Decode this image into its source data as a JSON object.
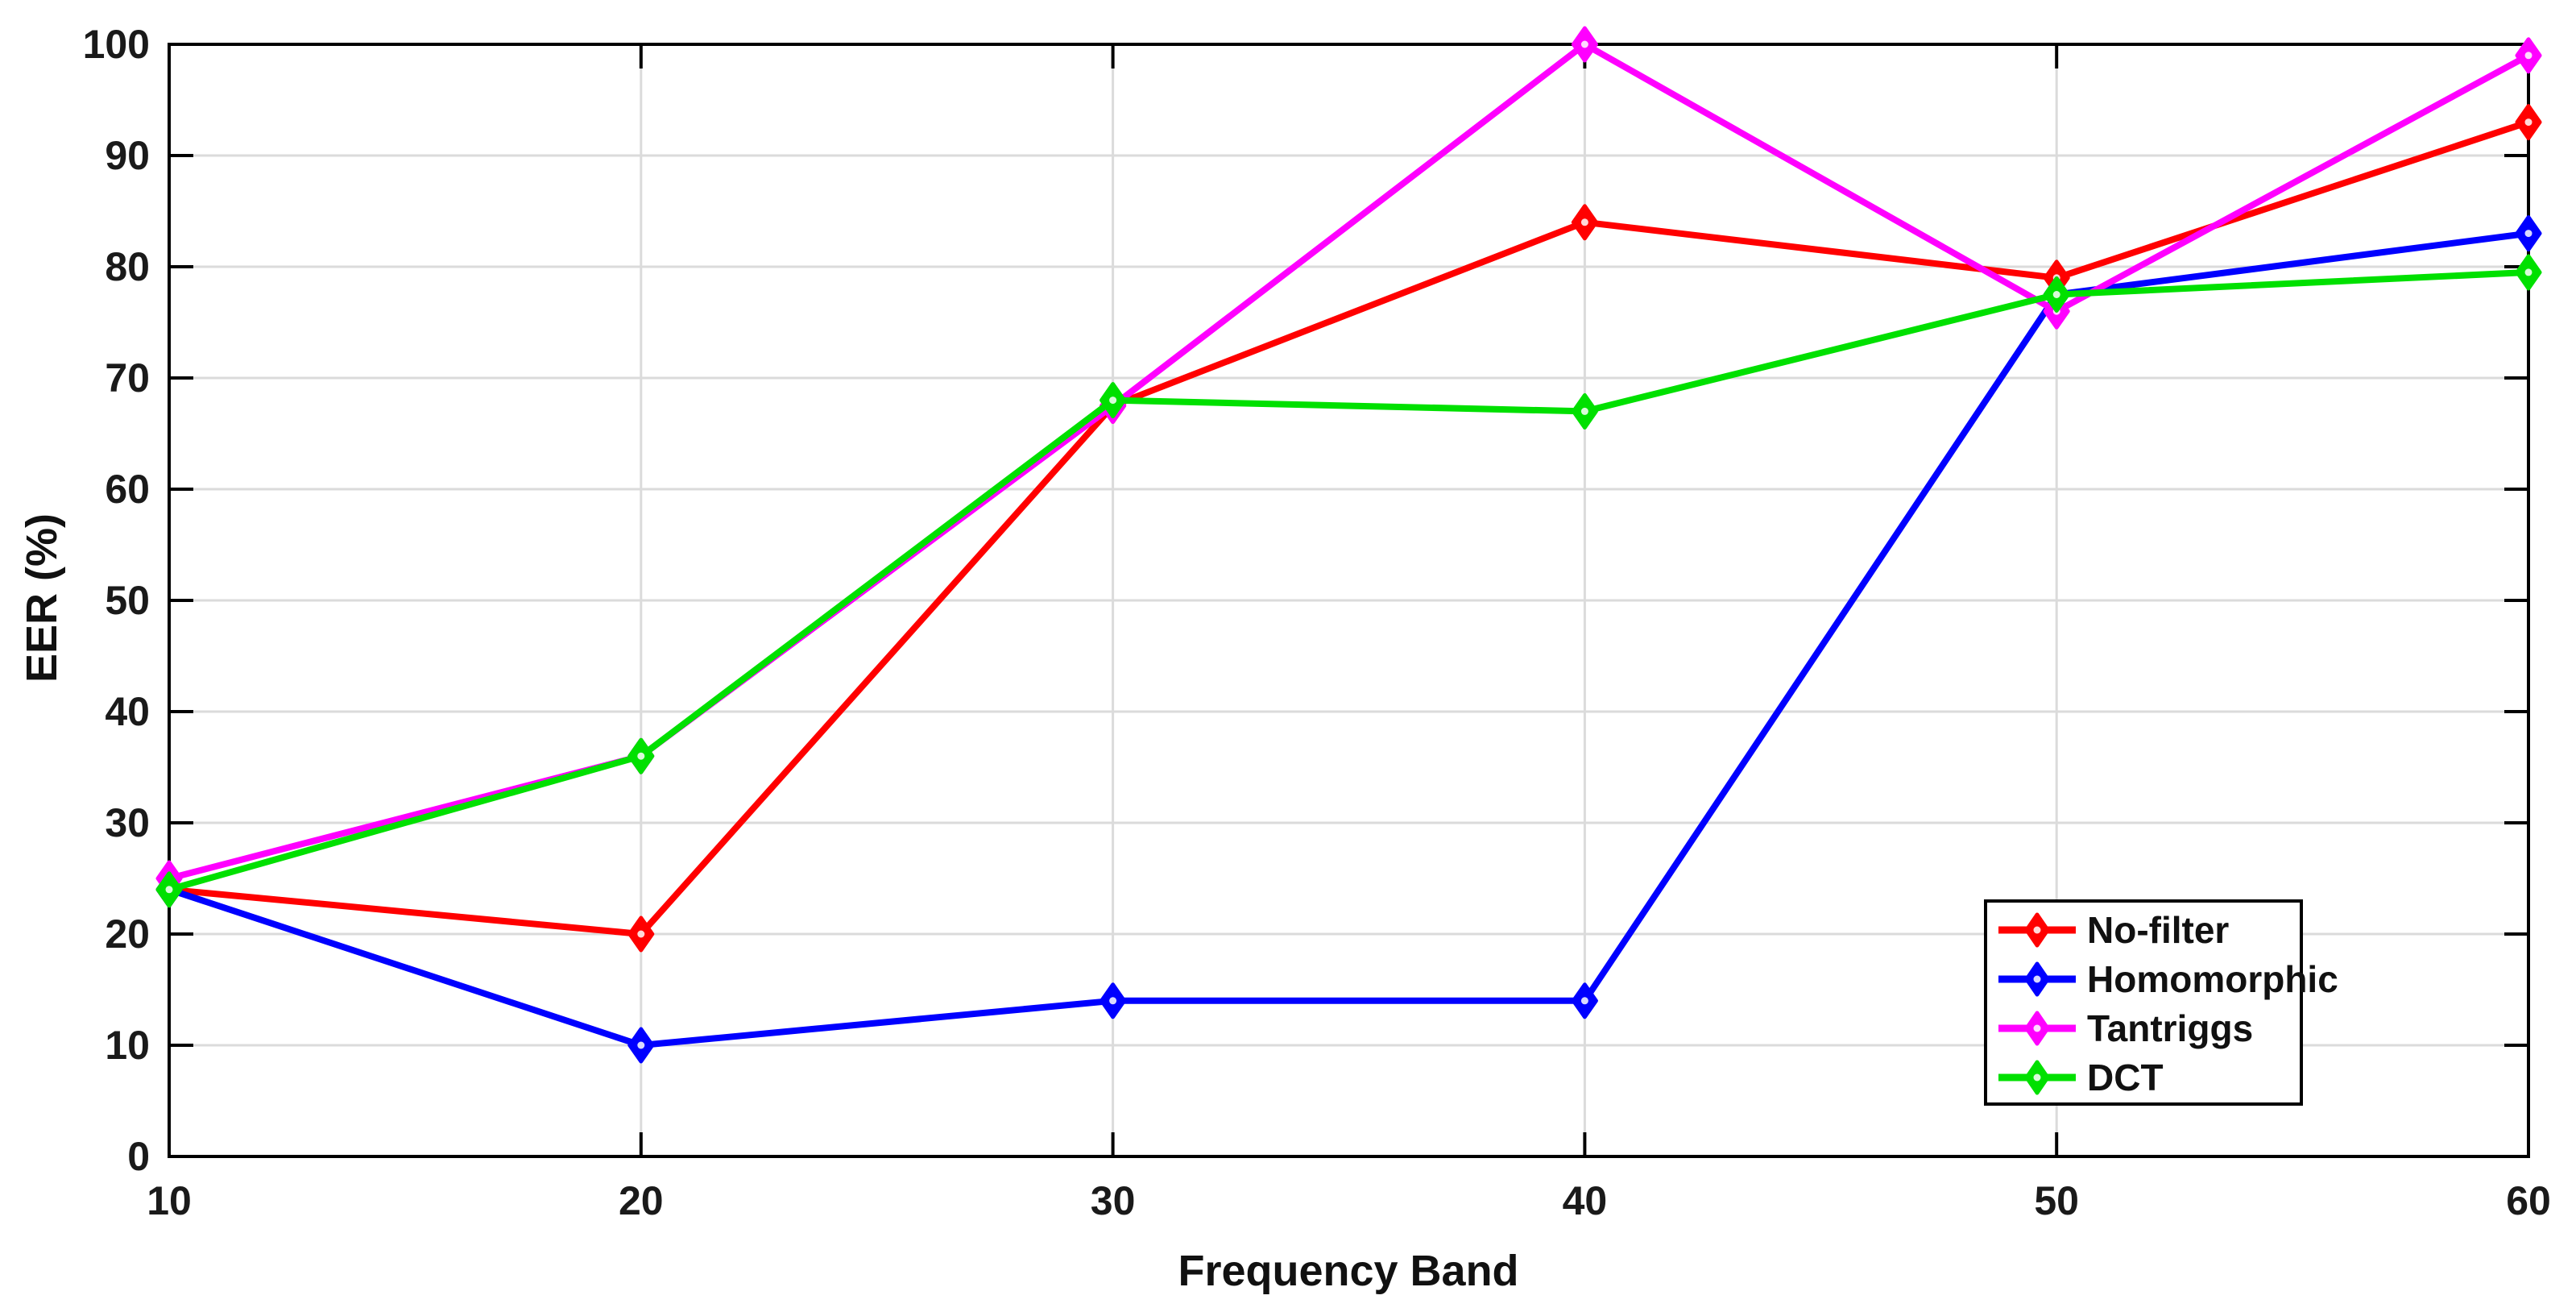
{
  "figure": {
    "background_color": "#FFFFFF",
    "axis_color": "#000000",
    "grid_color": "#DBDBDB",
    "tick_label_color": "#1A1A1A"
  },
  "chart_data": {
    "type": "line",
    "title": "",
    "xlabel": "Frequency Band",
    "ylabel": "EER (%)",
    "x": [
      10,
      20,
      30,
      40,
      50,
      60
    ],
    "x_ticks": [
      "10",
      "20",
      "30",
      "40",
      "50",
      "60"
    ],
    "y_ticks": [
      "0",
      "10",
      "20",
      "30",
      "40",
      "50",
      "60",
      "70",
      "80",
      "90",
      "100"
    ],
    "xlim": [
      10,
      60
    ],
    "ylim": [
      0,
      100
    ],
    "grid": true,
    "marker": "diamond",
    "legend_position": "lower-right",
    "series": [
      {
        "name": "No-filter",
        "color": "#FF0000",
        "values": [
          24,
          20,
          67.5,
          84,
          79,
          93
        ]
      },
      {
        "name": "Homomorphic",
        "color": "#0000FF",
        "values": [
          24,
          10,
          14,
          14,
          77.5,
          83
        ]
      },
      {
        "name": "Tantriggs",
        "color": "#FF00FF",
        "values": [
          25,
          36,
          67.5,
          100,
          76,
          99
        ]
      },
      {
        "name": "DCT",
        "color": "#00E000",
        "values": [
          24,
          36,
          68,
          67,
          77.5,
          79.5
        ]
      }
    ]
  }
}
